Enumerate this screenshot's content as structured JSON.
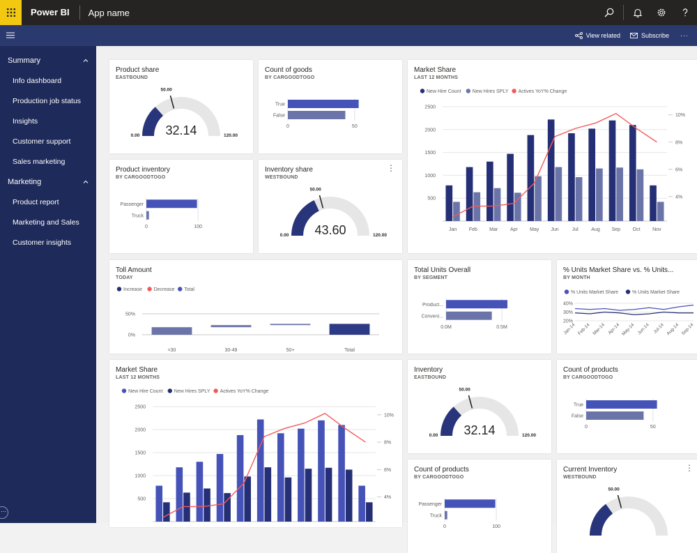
{
  "header": {
    "brand": "Power BI",
    "app_name": "App name"
  },
  "subbar": {
    "view_related": "View related",
    "subscribe": "Subscribe",
    "more": "···"
  },
  "sidebar": {
    "sections": [
      {
        "label": "Summary",
        "items": [
          "Info dashboard",
          "Production job status",
          "Insights",
          "Customer support",
          "Sales marketing"
        ]
      },
      {
        "label": "Marketing",
        "items": [
          "Product report",
          "Marketing and Sales",
          "Customer insights"
        ]
      }
    ]
  },
  "tiles": {
    "t1": {
      "title": "Product share",
      "subtitle": "EASTBOUND",
      "gauge": {
        "value": "32.14",
        "min": "0.00",
        "max": "120.00",
        "target": "50.00",
        "fraction": 0.268
      }
    },
    "t2": {
      "title": "Count of goods",
      "subtitle": "BY CARGOODTOGO"
    },
    "t3": {
      "title": "Market Share",
      "subtitle": "LAST 12 MONTHS"
    },
    "t4": {
      "title": "Product inventory",
      "subtitle": "BY CARGOODTOGO"
    },
    "t5": {
      "title": "Inventory share",
      "subtitle": "WESTBOUND",
      "more": "⋮",
      "gauge": {
        "value": "43.60",
        "min": "0.00",
        "max": "120.00",
        "target": "50.00",
        "fraction": 0.363
      }
    },
    "t6": {
      "title": "Toll Amount",
      "subtitle": "TODAY"
    },
    "t7": {
      "title": "Total Units Overall",
      "subtitle": "BY SEGMENT"
    },
    "t8": {
      "title": "% Units Market Share vs. % Units...",
      "subtitle": "BY MONTH"
    },
    "t9": {
      "title": "Market Share",
      "subtitle": "LAST 12 MONTHS"
    },
    "t10": {
      "title": "Inventory",
      "subtitle": "EASTBOUND",
      "gauge": {
        "value": "32.14",
        "min": "0.00",
        "max": "120.00",
        "target": "50.00",
        "fraction": 0.268
      }
    },
    "t11": {
      "title": "Count of products",
      "subtitle": "BY CARGOODTOGO"
    },
    "t12": {
      "title": "Count of products",
      "subtitle": "BY CARGOODTOGO"
    },
    "t13": {
      "title": "Current Inventory",
      "subtitle": "WESTBOUND",
      "more": "⋮",
      "gauge": {
        "value": "",
        "min": "",
        "max": "",
        "target": "50.00",
        "fraction": 0.3
      }
    }
  },
  "colors": {
    "navy": "#252f75",
    "royal": "#4552b8",
    "slate": "#6b74a8",
    "red": "#f25a5a",
    "grey": "#e6e6e6",
    "gauge_fill": "#28357a"
  },
  "chart_data": [
    {
      "id": "t2",
      "type": "bar",
      "orientation": "horizontal",
      "categories": [
        "True",
        "False"
      ],
      "values": [
        53,
        43
      ],
      "xticks": [
        "0",
        "50"
      ],
      "xlim": [
        0,
        60
      ],
      "colors": [
        "#4552b8",
        "#6b74a8"
      ]
    },
    {
      "id": "t3",
      "type": "bar",
      "categories": [
        "Jan",
        "Feb",
        "Mar",
        "Apr",
        "May",
        "Jun",
        "Jul",
        "Aug",
        "Sep",
        "Oct",
        "Nov"
      ],
      "series": [
        {
          "name": "New Hire Count",
          "values": [
            780,
            1180,
            1300,
            1470,
            1880,
            2220,
            1920,
            2020,
            2200,
            2100,
            780
          ],
          "color": "#252f75"
        },
        {
          "name": "New Hires SPLY",
          "values": [
            420,
            630,
            720,
            620,
            980,
            1180,
            960,
            1150,
            1170,
            1130,
            420
          ],
          "color": "#6b74a8"
        },
        {
          "name": "Actives YoY% Change",
          "axis": "right",
          "values": [
            2.5,
            3.3,
            3.3,
            3.5,
            5.0,
            8.4,
            9.0,
            9.4,
            10.1,
            9.0,
            8.0
          ],
          "color": "#f25a5a"
        }
      ],
      "yticks": [
        "500",
        "1000",
        "1500",
        "2000",
        "2500"
      ],
      "ylim": [
        0,
        2500
      ],
      "y2ticks": [
        "4%",
        "6%",
        "8%",
        "10%"
      ],
      "y2lim": [
        2.2,
        10.6
      ]
    },
    {
      "id": "t4",
      "type": "bar",
      "orientation": "horizontal",
      "categories": [
        "Passenger",
        "Truck"
      ],
      "values": [
        98,
        5
      ],
      "xticks": [
        "0",
        "100"
      ],
      "xlim": [
        0,
        135
      ],
      "colors": [
        "#4552b8",
        "#6b74a8"
      ]
    },
    {
      "id": "t6",
      "type": "waterfall",
      "legend": [
        {
          "name": "Increase",
          "color": "#252f75"
        },
        {
          "name": "Decrease",
          "color": "#f25a5a"
        },
        {
          "name": "Total",
          "color": "#4552b8"
        }
      ],
      "categories": [
        "<30",
        "30-49",
        "50+",
        "Total"
      ],
      "values": [
        18,
        5,
        3,
        26
      ],
      "yticks": [
        "0%",
        "50%"
      ],
      "ylim": [
        0,
        90
      ],
      "colors": [
        "#6b74a8",
        "#6b74a8",
        "#6b74a8",
        "#2d3b86"
      ]
    },
    {
      "id": "t7",
      "type": "bar",
      "orientation": "horizontal",
      "categories": [
        "Product...",
        "Conveni..."
      ],
      "values": [
        0.55,
        0.41
      ],
      "xticks": [
        "0.0M",
        "0.5M"
      ],
      "xlim": [
        0,
        0.75
      ],
      "colors": [
        "#4552b8",
        "#6b74a8"
      ]
    },
    {
      "id": "t8",
      "type": "line",
      "categories": [
        "Jan-14",
        "Feb-14",
        "Mar-14",
        "Apr-14",
        "May-14",
        "Jun-14",
        "Jul-14",
        "Aug-14",
        "Sep-14"
      ],
      "series": [
        {
          "name": "% Units Market Share",
          "values": [
            34,
            33,
            34,
            32,
            33,
            35,
            33,
            36,
            38
          ],
          "color": "#4552b8"
        },
        {
          "name": "% Units Market Share",
          "values": [
            29,
            28,
            30,
            29,
            27,
            28,
            30,
            29,
            29
          ],
          "color": "#252f75"
        }
      ],
      "yticks": [
        "20%",
        "30%",
        "40%"
      ],
      "ylim": [
        20,
        40
      ]
    },
    {
      "id": "t9",
      "type": "bar",
      "categories": [
        "Jan",
        "Feb",
        "Mar",
        "Apr",
        "May",
        "Jun",
        "Jul",
        "Aug",
        "Sep",
        "Oct",
        "Nov"
      ],
      "series": [
        {
          "name": "New Hire Count",
          "values": [
            780,
            1180,
            1300,
            1470,
            1880,
            2220,
            1920,
            2020,
            2200,
            2100,
            780
          ],
          "color": "#4552b8"
        },
        {
          "name": "New Hires SPLY",
          "values": [
            420,
            630,
            720,
            620,
            980,
            1180,
            960,
            1150,
            1170,
            1130,
            420
          ],
          "color": "#252f75"
        },
        {
          "name": "Actives YoY% Change",
          "axis": "right",
          "values": [
            2.5,
            3.3,
            3.3,
            3.5,
            5.0,
            8.4,
            9.0,
            9.4,
            10.1,
            9.0,
            8.0
          ],
          "color": "#f25a5a"
        }
      ],
      "yticks": [
        "500",
        "1000",
        "1500",
        "2000",
        "2500"
      ],
      "ylim": [
        0,
        2500
      ],
      "y2ticks": [
        "4%",
        "6%",
        "8%",
        "10%"
      ],
      "y2lim": [
        2.2,
        10.6
      ]
    },
    {
      "id": "t11",
      "type": "bar",
      "orientation": "horizontal",
      "categories": [
        "True",
        "False"
      ],
      "values": [
        53,
        43
      ],
      "xticks": [
        "0",
        "50"
      ],
      "xlim": [
        0,
        60
      ],
      "colors": [
        "#4552b8",
        "#6b74a8"
      ]
    },
    {
      "id": "t12",
      "type": "bar",
      "orientation": "horizontal",
      "categories": [
        "Passenger",
        "Truck"
      ],
      "values": [
        98,
        5
      ],
      "xticks": [
        "0",
        "100"
      ],
      "xlim": [
        0,
        135
      ],
      "colors": [
        "#4552b8",
        "#6b74a8"
      ]
    }
  ]
}
